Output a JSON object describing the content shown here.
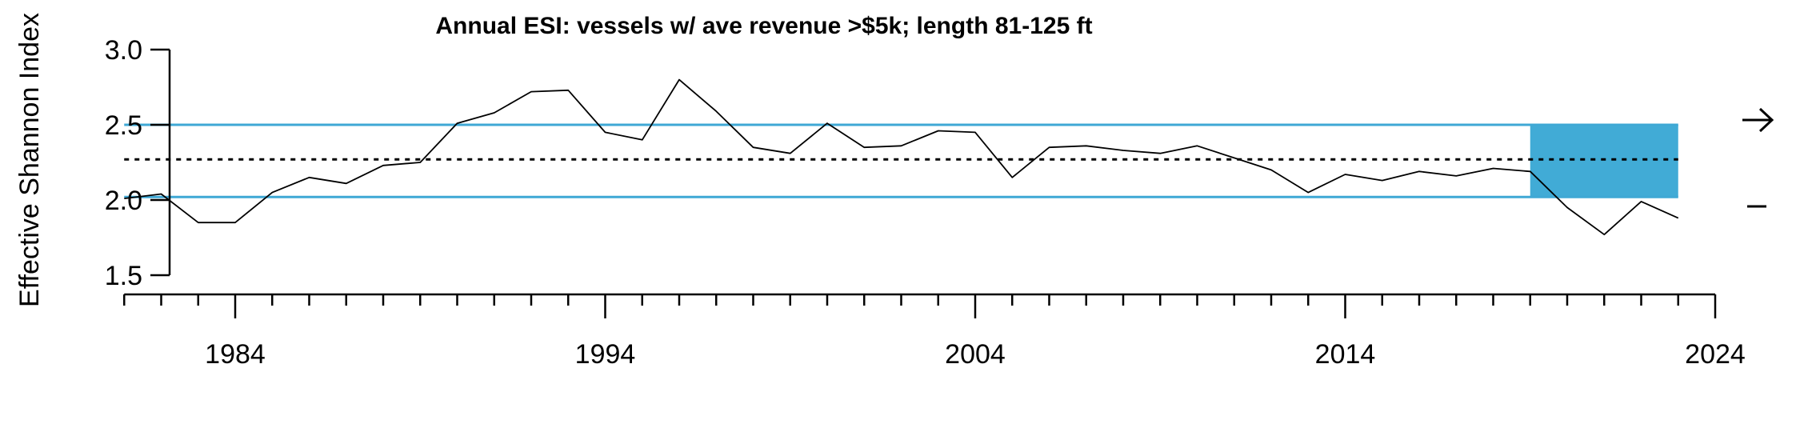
{
  "chart_data": {
    "type": "line",
    "title": "Annual ESI: vessels w/ ave revenue >$5k; length 81-125 ft",
    "ylabel": "Effective Shannon Index",
    "xlabel": "",
    "xlim": [
      1981,
      2024
    ],
    "ylim": [
      1.5,
      3.0
    ],
    "x_ticks": [
      1984,
      1994,
      2004,
      2014,
      2024
    ],
    "x_tick_labels": [
      "1984",
      "1994",
      "2004",
      "2014",
      "2024"
    ],
    "y_ticks": [
      1.5,
      2.0,
      2.5,
      3.0
    ],
    "y_tick_labels": [
      "1.5",
      "2.0",
      "2.5",
      "3.0"
    ],
    "x_minor_tick_step": 1,
    "grid": false,
    "series": [
      {
        "x": [
          1981,
          1982,
          1983,
          1984,
          1985,
          1986,
          1987,
          1988,
          1989,
          1990,
          1991,
          1992,
          1993,
          1994,
          1995,
          1996,
          1997,
          1998,
          1999,
          2000,
          2001,
          2002,
          2003,
          2004,
          2005,
          2006,
          2007,
          2008,
          2009,
          2010,
          2011,
          2012,
          2013,
          2014,
          2015,
          2016,
          2017,
          2018,
          2019,
          2020,
          2021,
          2022,
          2023
        ],
        "values": [
          2.01,
          2.04,
          1.85,
          1.85,
          2.05,
          2.15,
          2.11,
          2.23,
          2.25,
          2.51,
          2.58,
          2.72,
          2.73,
          2.45,
          2.4,
          2.8,
          2.59,
          2.35,
          2.31,
          2.51,
          2.35,
          2.36,
          2.46,
          2.45,
          2.15,
          2.35,
          2.36,
          2.33,
          2.31,
          2.36,
          2.28,
          2.2,
          2.05,
          2.17,
          2.13,
          2.19,
          2.16,
          2.21,
          2.19,
          1.95,
          1.77,
          1.99,
          1.88
        ],
        "color": "#000000"
      }
    ],
    "reference_lines": {
      "mean": 2.27,
      "upper_sd": 2.5,
      "lower_sd": 2.02,
      "mean_color": "#000000",
      "sd_color": "#3fa8d5"
    },
    "highlight_band": {
      "x_from": 2019,
      "x_to": 2023,
      "y_from": 2.02,
      "y_to": 2.5,
      "color": "#41abd6"
    },
    "trend_indicators": {
      "recent_mean_vs_longterm": "right-arrow",
      "recent_trend": "dash"
    }
  }
}
